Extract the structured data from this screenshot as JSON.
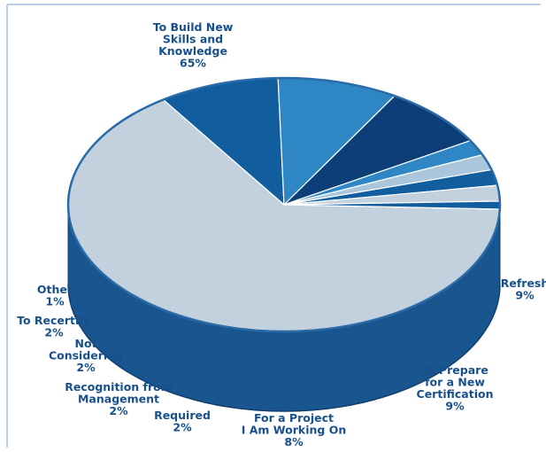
{
  "chart_data": {
    "type": "pie",
    "title": "",
    "slices": [
      {
        "label": "To Build New Skills and Knowledge",
        "value": 65,
        "text": [
          "To Build New",
          "Skills and",
          "Knowledge",
          "65%"
        ],
        "color": "#c3d1df"
      },
      {
        "label": "Refresh",
        "value": 9,
        "text": [
          "Refresh",
          "9%"
        ],
        "color": "#115d9e"
      },
      {
        "label": "To Prepare for a New Certification",
        "value": 9,
        "text": [
          "To Prepare",
          "for a New",
          "Certification",
          "9%"
        ],
        "color": "#2f86c4"
      },
      {
        "label": "For a Project I Am Working On",
        "value": 8,
        "text": [
          "For a Project",
          "I Am Working On",
          "8%"
        ],
        "color": "#0d3e77"
      },
      {
        "label": "Required",
        "value": 2,
        "text": [
          "Required",
          "2%"
        ],
        "color": "#2f86c4"
      },
      {
        "label": "Recognition from Management",
        "value": 2,
        "text": [
          "Recognition from",
          "Management",
          "2%"
        ],
        "color": "#a9c6dd"
      },
      {
        "label": "Not Considering",
        "value": 2,
        "text": [
          "Not",
          "Considering",
          "2%"
        ],
        "color": "#115d9e"
      },
      {
        "label": "To Recertify",
        "value": 2,
        "text": [
          "To Recertify",
          "2%"
        ],
        "color": "#c3d1df"
      },
      {
        "label": "Other",
        "value": 1,
        "text": [
          "Other",
          "1%"
        ],
        "color": "#115d9e"
      }
    ],
    "colors": {
      "side": "#19568f",
      "side_dark": "#113f6e",
      "rim": "#2a6aa6",
      "label": "#17508c",
      "frame": "#b9d0e6"
    }
  }
}
